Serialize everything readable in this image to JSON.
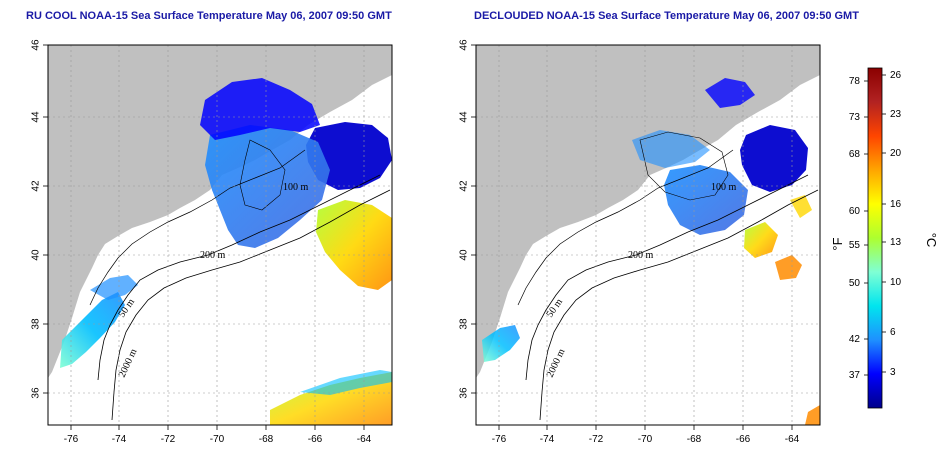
{
  "panels": [
    {
      "id": "left",
      "title": "RU COOL NOAA-15 Sea Surface Temperature May 06, 2007 09:50 GMT"
    },
    {
      "id": "right",
      "title": "DECLOUDED NOAA-15 Sea Surface Temperature May 06, 2007 09:50 GMT"
    }
  ],
  "axes": {
    "x_ticks": [
      "-76",
      "-74",
      "-72",
      "-70",
      "-68",
      "-66",
      "-64"
    ],
    "y_ticks": [
      "46",
      "44",
      "42",
      "40",
      "38",
      "36"
    ]
  },
  "contour_labels": {
    "left": [
      "100 m",
      "200 m",
      "50 m",
      "2000 m"
    ],
    "right": [
      "100 m",
      "200 m",
      "50 m",
      "2000 m"
    ]
  },
  "colorbar": {
    "fahrenheit_ticks": [
      "78",
      "73",
      "68",
      "60",
      "55",
      "50",
      "42",
      "37"
    ],
    "celsius_ticks": [
      "26",
      "23",
      "20",
      "16",
      "13",
      "10",
      "6",
      "3"
    ],
    "unit_f": "°F",
    "unit_c": "°C",
    "colors": [
      "#00008b",
      "#0000ff",
      "#1e90ff",
      "#00e5ee",
      "#7fffd4",
      "#adff2f",
      "#ffff00",
      "#ffa500",
      "#ff4500",
      "#b22222",
      "#8b0000"
    ]
  },
  "colors": {
    "land": "#c0c0c0",
    "ocean": "#ffffff",
    "title": "#1a1aa6"
  }
}
